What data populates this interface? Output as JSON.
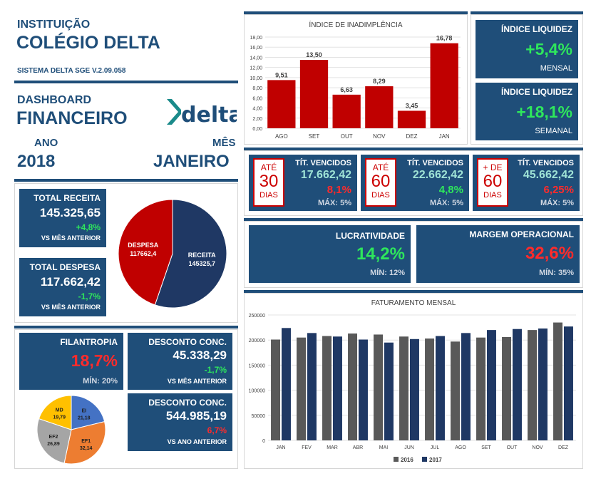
{
  "header": {
    "institution_label": "INSTITUIÇÃO",
    "institution_name": "COLÉGIO DELTA",
    "system_version": "SISTEMA DELTA SGE V.2.09.058",
    "dashboard_label": "DASHBOARD",
    "dashboard_title": "FINANCEIRO",
    "logo_text": "delta",
    "year_label": "ANO",
    "year_value": "2018",
    "month_label": "MÊS",
    "month_value": "JANEIRO"
  },
  "totals": {
    "receita": {
      "title": "TOTAL RECEITA",
      "value": "145.325,65",
      "change": "+4,8%",
      "caption": "VS MÊS ANTERIOR"
    },
    "despesa": {
      "title": "TOTAL DESPESA",
      "value": "117.662,42",
      "change": "-1,7%",
      "caption": "VS MÊS ANTERIOR"
    }
  },
  "filantropia": {
    "title": "FILANTROPIA",
    "value": "18,7%",
    "min": "MÍN: 20%"
  },
  "desconto_mes": {
    "title": "DESCONTO CONC.",
    "value": "45.338,29",
    "change": "-1,7%",
    "caption": "VS MÊS ANTERIOR"
  },
  "desconto_ano": {
    "title": "DESCONTO CONC.",
    "value": "544.985,19",
    "change": "6,7%",
    "caption": "VS ANO ANTERIOR"
  },
  "liquidez_mensal": {
    "title": "ÍNDICE LIQUIDEZ",
    "value": "+5,4%",
    "caption": "MENSAL"
  },
  "liquidez_semanal": {
    "title": "ÍNDICE LIQUIDEZ",
    "value": "+18,1%",
    "caption": "SEMANAL"
  },
  "vencidos": [
    {
      "prefix": "ATÉ",
      "days": "30",
      "suffix": "DIAS",
      "title": "TÍT. VENCIDOS",
      "value": "17.662,42",
      "pct": "8,1%",
      "max": "MÁX: 5%"
    },
    {
      "prefix": "ATÉ",
      "days": "60",
      "suffix": "DIAS",
      "title": "TÍT. VENCIDOS",
      "value": "22.662,42",
      "pct": "4,8%",
      "max": "MÁX: 5%"
    },
    {
      "prefix": "+ DE",
      "days": "60",
      "suffix": "DIAS",
      "title": "TÍT. VENCIDOS",
      "value": "45.662,42",
      "pct": "6,25%",
      "max": "MÁX: 5%"
    }
  ],
  "lucratividade": {
    "title": "LUCRATIVIDADE",
    "value": "14,2%",
    "min": "MÍN: 12%"
  },
  "margem": {
    "title": "MARGEM OPERACIONAL",
    "value": "32,6%",
    "min": "MÍN: 35%"
  },
  "colors": {
    "navy": "#1f4e79",
    "red": "#c00000",
    "green": "#2ee65c",
    "gray": "#595959",
    "darkblue": "#1f3864"
  },
  "chart_data": [
    {
      "type": "bar",
      "title": "ÍNDICE DE INADIMPLÊNCIA",
      "categories": [
        "AGO",
        "SET",
        "OUT",
        "NOV",
        "DEZ",
        "JAN"
      ],
      "values": [
        9.51,
        13.5,
        6.63,
        8.29,
        3.45,
        16.78
      ],
      "value_labels": [
        "9,51",
        "13,50",
        "6,63",
        "8,29",
        "3,45",
        "16,78"
      ],
      "ylim": [
        0,
        18
      ],
      "yticks": [
        "0,00",
        "2,00",
        "4,00",
        "6,00",
        "8,00",
        "10,00",
        "12,00",
        "14,00",
        "16,00",
        "18,00"
      ]
    },
    {
      "type": "pie",
      "slices": [
        {
          "label": "RECEITA",
          "value": 145325.7,
          "text": "145325,7"
        },
        {
          "label": "DESPESA",
          "value": 117662.4,
          "text": "117662,4"
        }
      ]
    },
    {
      "type": "pie",
      "slices": [
        {
          "label": "EI",
          "value": 21.18,
          "text": "21,18"
        },
        {
          "label": "EF1",
          "value": 32.14,
          "text": "32,14"
        },
        {
          "label": "EF2",
          "value": 26.89,
          "text": "26,89"
        },
        {
          "label": "MD",
          "value": 19.79,
          "text": "19,79"
        }
      ]
    },
    {
      "type": "bar",
      "title": "FATURAMENTO MENSAL",
      "categories": [
        "JAN",
        "FEV",
        "MAR",
        "ABR",
        "MAI",
        "JUN",
        "JUL",
        "AGO",
        "SET",
        "OUT",
        "NOV",
        "DEZ"
      ],
      "series": [
        {
          "name": "2016",
          "values": [
            201000,
            205000,
            208000,
            213000,
            211000,
            207000,
            203000,
            197000,
            205000,
            206000,
            220000,
            235000
          ]
        },
        {
          "name": "2017",
          "values": [
            224000,
            214000,
            207000,
            201000,
            195000,
            202000,
            208000,
            214000,
            220000,
            222000,
            223000,
            227000
          ]
        }
      ],
      "ylim": [
        0,
        250000
      ],
      "yticks": [
        "0",
        "50000",
        "100000",
        "150000",
        "200000",
        "250000"
      ]
    }
  ]
}
